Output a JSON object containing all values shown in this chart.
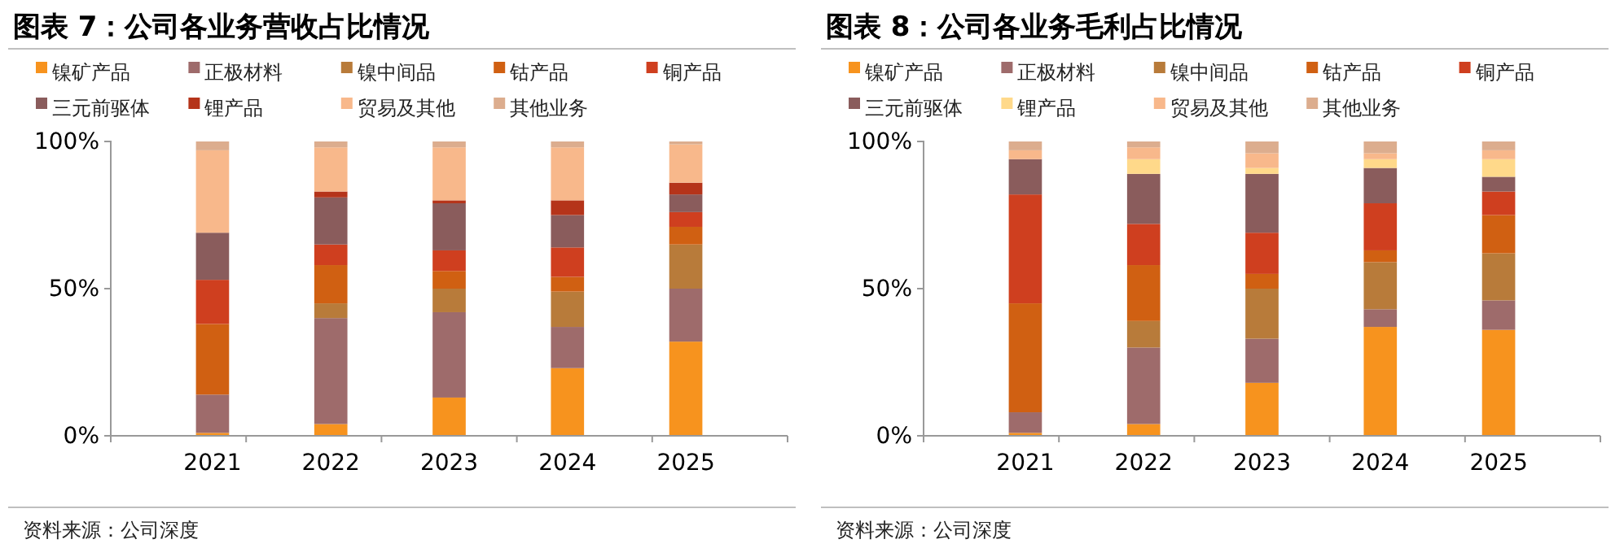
{
  "chart_data": [
    {
      "type": "bar",
      "title": "图表 7：公司各业务营收占比情况",
      "categories": [
        "2021",
        "2022",
        "2023",
        "2024",
        "2025"
      ],
      "stacked": true,
      "legend": "top",
      "ylim": [
        0,
        100
      ],
      "yticks": [
        {
          "value": 0,
          "label": "0%"
        },
        {
          "value": 50,
          "label": "50%"
        },
        {
          "value": 100,
          "label": "100%"
        }
      ],
      "annotations": [
        "资料来源：公司深度"
      ],
      "series": [
        {
          "name": "镍矿产品",
          "color": "#f7931e",
          "values": [
            1,
            4,
            13,
            23,
            32
          ]
        },
        {
          "name": "正极材料",
          "color": "#9e6b6b",
          "values": [
            13,
            36,
            29,
            14,
            18
          ]
        },
        {
          "name": "镍中间品",
          "color": "#b87b3a",
          "values": [
            0,
            5,
            8,
            12,
            15
          ]
        },
        {
          "name": "钴产品",
          "color": "#d06012",
          "values": [
            24,
            13,
            6,
            5,
            6
          ]
        },
        {
          "name": "铜产品",
          "color": "#cf3f1f",
          "values": [
            15,
            7,
            7,
            10,
            5
          ]
        },
        {
          "name": "三元前驱体",
          "color": "#8a5c5c",
          "values": [
            16,
            16,
            16,
            11,
            6
          ]
        },
        {
          "name": "锂产品",
          "color": "#b5341a",
          "values": [
            0,
            2,
            1,
            5,
            4
          ]
        },
        {
          "name": "贸易及其他",
          "color": "#f8b88b",
          "values": [
            28,
            15,
            18,
            18,
            13
          ]
        },
        {
          "name": "其他业务",
          "color": "#dcad8e",
          "values": [
            3,
            2,
            2,
            2,
            1
          ]
        }
      ]
    },
    {
      "type": "bar",
      "title": "图表 8：公司各业务毛利占比情况",
      "categories": [
        "2021",
        "2022",
        "2023",
        "2024",
        "2025"
      ],
      "stacked": true,
      "legend": "top",
      "ylim": [
        0,
        100
      ],
      "yticks": [
        {
          "value": 0,
          "label": "0%"
        },
        {
          "value": 50,
          "label": "50%"
        },
        {
          "value": 100,
          "label": "100%"
        }
      ],
      "annotations": [
        "资料来源：公司深度"
      ],
      "series": [
        {
          "name": "镍矿产品",
          "color": "#f7931e",
          "values": [
            1,
            4,
            18,
            37,
            36
          ]
        },
        {
          "name": "正极材料",
          "color": "#9e6b6b",
          "values": [
            7,
            26,
            15,
            6,
            10
          ]
        },
        {
          "name": "镍中间品",
          "color": "#b87b3a",
          "values": [
            0,
            9,
            17,
            16,
            16
          ]
        },
        {
          "name": "钴产品",
          "color": "#d06012",
          "values": [
            37,
            19,
            5,
            4,
            13
          ]
        },
        {
          "name": "铜产品",
          "color": "#cf3f1f",
          "values": [
            37,
            14,
            14,
            16,
            8
          ]
        },
        {
          "name": "三元前驱体",
          "color": "#8a5c5c",
          "values": [
            12,
            17,
            20,
            12,
            5
          ]
        },
        {
          "name": "锂产品",
          "color": "#ffd98a",
          "values": [
            0,
            5,
            2,
            3,
            6
          ]
        },
        {
          "name": "贸易及其他",
          "color": "#f8b88b",
          "values": [
            3,
            4,
            5,
            2,
            3
          ]
        },
        {
          "name": "其他业务",
          "color": "#dcad8e",
          "values": [
            3,
            2,
            4,
            4,
            3
          ]
        }
      ]
    }
  ]
}
